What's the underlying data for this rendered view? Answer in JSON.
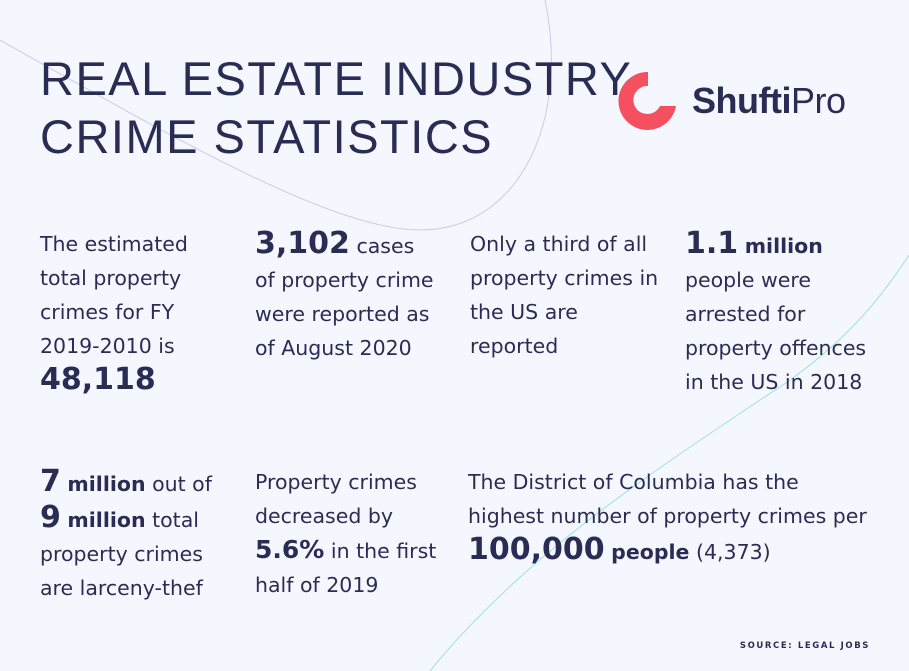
{
  "title": {
    "line1": "REAL ESTATE INDUSTRY",
    "line2": "CRIME STATISTICS"
  },
  "logo": {
    "bold": "Shufti",
    "regular": "Pro",
    "icon": "shufti-pro-logo-icon",
    "brand_color": "#f4505f"
  },
  "stats": {
    "s1": {
      "text": "The estimated total property crimes for FY 2019-2010 is",
      "value": "48,118"
    },
    "s2": {
      "value": "3,102",
      "text": "cases of property crime were reported as of August 2020"
    },
    "s3": {
      "text": "Only a third of all property crimes in the US are reported"
    },
    "s4": {
      "value": "1.1",
      "unit": "million",
      "text": "people were arrested for property offences in the US in 2018"
    },
    "s5": {
      "value_a": "7",
      "unit_a": "million",
      "text_a": "out of",
      "value_b": "9",
      "unit_b": "million",
      "text_b": "total property crimes are larceny-thef"
    },
    "s6": {
      "text_a": "Property crimes decreased by",
      "value": "5.6%",
      "text_b": "in the first half of 2019"
    },
    "s7": {
      "text_a": "The District of Columbia has the highest number of property crimes per",
      "value": "100,000",
      "unit": "people",
      "text_b": "(4,373)"
    }
  },
  "source": "SOURCE: LEGAL JOBS",
  "colors": {
    "text": "#2a2c54",
    "background": "#f4f7fe",
    "accent": "#f4505f"
  }
}
